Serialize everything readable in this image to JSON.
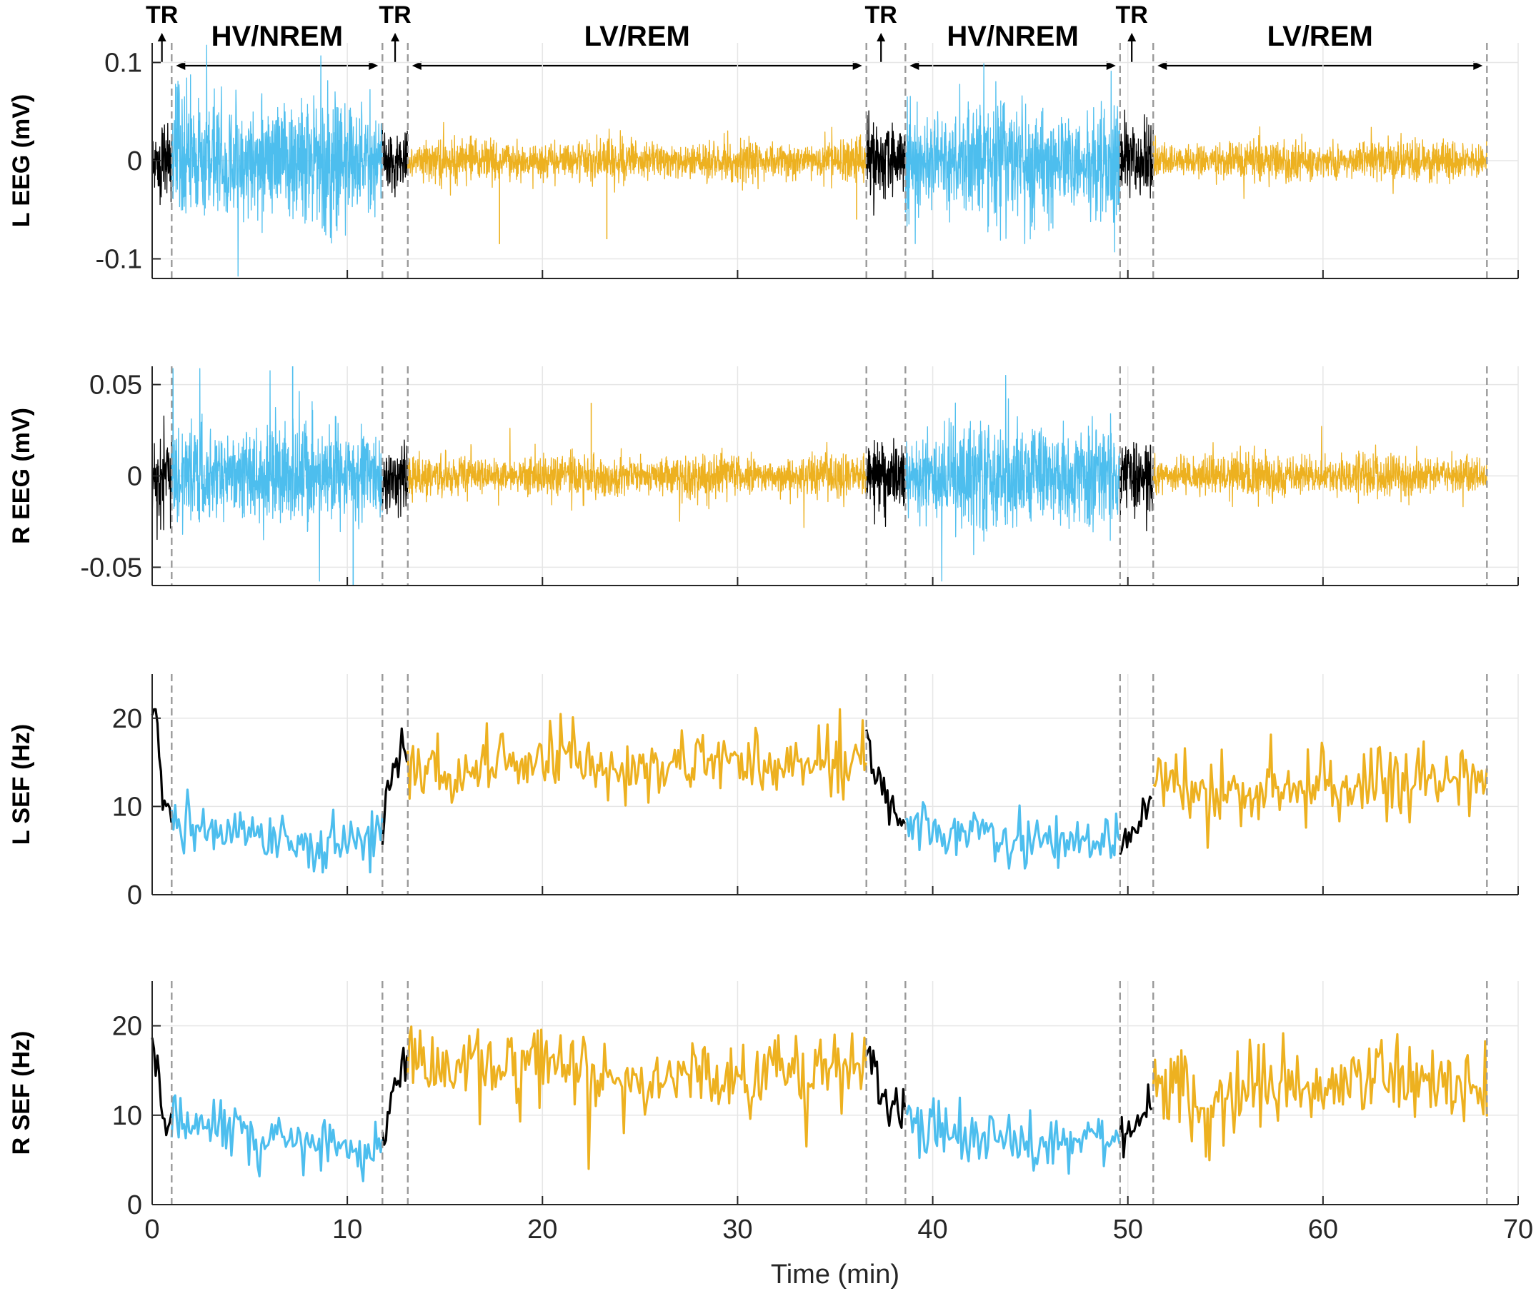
{
  "chart_data": {
    "type": "line",
    "xlabel": "Time (min)",
    "xlim": [
      0,
      70
    ],
    "xticks": [
      0,
      10,
      20,
      30,
      40,
      50,
      60,
      70
    ],
    "colors": {
      "transition": "#000000",
      "nrem": "#4DBEEE",
      "rem": "#EDB120",
      "boundary": "#9a9a9a",
      "grid": "#e6e6e6",
      "axis": "#262626"
    },
    "boundaries_min": [
      1.0,
      11.8,
      13.1,
      36.6,
      38.6,
      49.6,
      51.3,
      68.4
    ],
    "segments": [
      {
        "stage": "TR",
        "start": 0,
        "end": 1.0
      },
      {
        "stage": "HV/NREM",
        "start": 1.0,
        "end": 11.8
      },
      {
        "stage": "TR",
        "start": 11.8,
        "end": 13.1
      },
      {
        "stage": "LV/REM",
        "start": 13.1,
        "end": 36.6
      },
      {
        "stage": "TR",
        "start": 36.6,
        "end": 38.6
      },
      {
        "stage": "HV/NREM",
        "start": 38.6,
        "end": 49.6
      },
      {
        "stage": "TR",
        "start": 49.6,
        "end": 51.3
      },
      {
        "stage": "LV/REM",
        "start": 51.3,
        "end": 68.4
      }
    ],
    "annotations": {
      "tr": [
        {
          "label": "TR",
          "x": 0.5
        },
        {
          "label": "TR",
          "x": 12.45
        },
        {
          "label": "TR",
          "x": 37.35
        },
        {
          "label": "TR",
          "x": 50.2
        }
      ],
      "stages": [
        {
          "label": "HV/NREM",
          "start": 1.0,
          "end": 11.8
        },
        {
          "label": "LV/REM",
          "start": 13.1,
          "end": 36.6
        },
        {
          "label": "HV/NREM",
          "start": 38.6,
          "end": 49.6
        },
        {
          "label": "LV/REM",
          "start": 51.3,
          "end": 68.4
        }
      ]
    },
    "panels": [
      {
        "id": "l-eeg",
        "ylabel": "L EEG (mV)",
        "kind": "eeg",
        "ylim": [
          -0.12,
          0.12
        ],
        "yticks": [
          0.1,
          0,
          -0.1
        ],
        "ytick_labels": [
          "0.1",
          "0",
          "-0.1"
        ],
        "amplitude": {
          "TR": 0.045,
          "HV/NREM": 0.075,
          "LV/REM": 0.025
        },
        "spikes": [
          {
            "x": 17.8,
            "y": -0.085
          },
          {
            "x": 23.3,
            "y": -0.08
          },
          {
            "x": 36.1,
            "y": -0.06
          }
        ]
      },
      {
        "id": "r-eeg",
        "ylabel": "R EEG (mV)",
        "kind": "eeg",
        "ylim": [
          -0.06,
          0.06
        ],
        "yticks": [
          0.05,
          0,
          -0.05
        ],
        "ytick_labels": [
          "0.05",
          "0",
          "-0.05"
        ],
        "amplitude": {
          "TR": 0.024,
          "HV/NREM": 0.035,
          "LV/REM": 0.014
        },
        "spikes": [
          {
            "x": 22.5,
            "y": 0.04
          },
          {
            "x": 7.2,
            "y": 0.06
          },
          {
            "x": 10.3,
            "y": -0.06
          }
        ]
      },
      {
        "id": "l-sef",
        "ylabel": "L SEF (Hz)",
        "kind": "sef",
        "ylim": [
          0,
          25
        ],
        "yticks": [
          0,
          10,
          20
        ],
        "ytick_labels": [
          "0",
          "10",
          "20"
        ],
        "trend": [
          [
            0,
            19.5
          ],
          [
            0.3,
            18
          ],
          [
            0.5,
            10.5
          ],
          [
            1.0,
            8.5
          ],
          [
            1.1,
            7.5
          ],
          [
            3,
            7
          ],
          [
            6,
            6.8
          ],
          [
            9,
            5.8
          ],
          [
            11,
            5.5
          ],
          [
            11.8,
            6.5
          ],
          [
            12.2,
            13
          ],
          [
            12.8,
            17
          ],
          [
            13.1,
            15
          ],
          [
            15,
            13
          ],
          [
            18,
            15
          ],
          [
            21,
            15.5
          ],
          [
            25,
            14
          ],
          [
            28,
            15
          ],
          [
            33,
            14.5
          ],
          [
            36.5,
            15.5
          ],
          [
            36.7,
            17
          ],
          [
            37.2,
            12
          ],
          [
            37.6,
            10.5
          ],
          [
            38.2,
            8.8
          ],
          [
            38.6,
            8.5
          ],
          [
            40,
            7
          ],
          [
            43,
            6.5
          ],
          [
            46,
            6.2
          ],
          [
            49,
            6.0
          ],
          [
            49.6,
            6.0
          ],
          [
            50.2,
            6.0
          ],
          [
            50.8,
            9.5
          ],
          [
            51.3,
            13
          ],
          [
            52,
            13.5
          ],
          [
            53.5,
            10.5
          ],
          [
            56,
            11.5
          ],
          [
            59,
            12.5
          ],
          [
            62,
            12.5
          ],
          [
            65,
            13.5
          ],
          [
            68.4,
            12.5
          ]
        ],
        "noise": {
          "TR": 1.8,
          "HV/NREM": 2.0,
          "LV/REM": 2.6
        }
      },
      {
        "id": "r-sef",
        "ylabel": "R SEF (Hz)",
        "kind": "sef",
        "ylim": [
          0,
          25
        ],
        "yticks": [
          0,
          10,
          20
        ],
        "ytick_labels": [
          "0",
          "10",
          "20"
        ],
        "trend": [
          [
            0,
            17.5
          ],
          [
            0.3,
            17
          ],
          [
            0.5,
            10
          ],
          [
            1.0,
            9.0
          ],
          [
            1.1,
            9.5
          ],
          [
            3,
            8.5
          ],
          [
            6,
            7.5
          ],
          [
            9,
            6.5
          ],
          [
            11,
            5.5
          ],
          [
            11.8,
            7
          ],
          [
            12.3,
            12
          ],
          [
            12.8,
            16
          ],
          [
            13.1,
            16
          ],
          [
            15,
            15
          ],
          [
            18,
            15.5
          ],
          [
            21,
            16
          ],
          [
            25,
            14
          ],
          [
            28,
            15
          ],
          [
            33,
            14.5
          ],
          [
            36.5,
            15.5
          ],
          [
            36.8,
            17.5
          ],
          [
            37.3,
            12
          ],
          [
            38,
            11
          ],
          [
            38.6,
            9.5
          ],
          [
            40,
            8.5
          ],
          [
            43,
            7.5
          ],
          [
            46,
            7
          ],
          [
            49,
            7
          ],
          [
            49.6,
            7
          ],
          [
            50.3,
            8.5
          ],
          [
            51,
            11
          ],
          [
            51.3,
            12.5
          ],
          [
            52.5,
            13
          ],
          [
            54,
            9.5
          ],
          [
            56,
            13
          ],
          [
            59,
            13
          ],
          [
            62,
            13
          ],
          [
            65,
            14.5
          ],
          [
            68.4,
            12.5
          ]
        ],
        "noise": {
          "TR": 1.8,
          "HV/NREM": 2.0,
          "LV/REM": 2.8
        },
        "dips": [
          {
            "x": 22.4,
            "y": 4
          },
          {
            "x": 24.2,
            "y": 8
          },
          {
            "x": 16.8,
            "y": 9
          },
          {
            "x": 33.5,
            "y": 6.5
          }
        ]
      }
    ]
  }
}
